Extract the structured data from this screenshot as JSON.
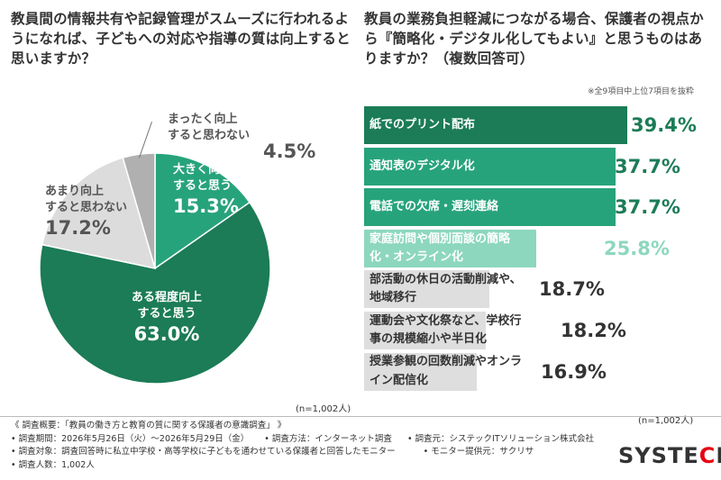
{
  "left_question": "教員間の情報共有や記録管理がスムーズに行われるようになれば、子どもへの対応や指導の質は向上すると思いますか？",
  "right_question": "教員の業務負担軽減につながる場合、保護者の視点から『簡略化・デジタル化してもよい』と思うものはありますか？（複数回答可）",
  "top_note": "※全9項目中上位7項目を抜粋",
  "pie_n": "(n=1,002人)",
  "bar_n": "(n=1,002人)",
  "chart_data": [
    {
      "type": "pie",
      "title": "教員間の情報共有や記録管理がスムーズに行われるようになれば、子どもへの対応や指導の質は向上すると思いますか？",
      "slices": [
        {
          "label_line1": "大きく向上",
          "label_line2": "すると思う",
          "value": 15.3,
          "value_text": "15.3%",
          "color": "#27a37b"
        },
        {
          "label_line1": "ある程度向上",
          "label_line2": "すると思う",
          "value": 63.0,
          "value_text": "63.0%",
          "color": "#1b7c57"
        },
        {
          "label_line1": "あまり向上",
          "label_line2": "すると思わない",
          "value": 17.2,
          "value_text": "17.2%",
          "color": "#dcdcdc"
        },
        {
          "label_line1": "まったく向上",
          "label_line2": "すると思わない",
          "value": 4.5,
          "value_text": "4.5%",
          "color": "#b0b0b0"
        }
      ]
    },
    {
      "type": "bar",
      "orientation": "horizontal",
      "title": "教員の業務負担軽減につながる場合、保護者の視点から『簡略化・デジタル化してもよい』と思うものはありますか？（複数回答可）",
      "xlim": [
        0,
        39.4
      ],
      "bars": [
        {
          "label": "紙でのプリント配布",
          "value": 39.4,
          "value_text": "39.4%",
          "color": "#1b7c57",
          "text_color": "#ffffff",
          "value_color": "#1b7c57"
        },
        {
          "label": "通知表のデジタル化",
          "value": 37.7,
          "value_text": "37.7%",
          "color": "#27a37b",
          "text_color": "#ffffff",
          "value_color": "#1b7c57"
        },
        {
          "label": "電話での欠席・遅刻連絡",
          "value": 37.7,
          "value_text": "37.7%",
          "color": "#27a37b",
          "text_color": "#ffffff",
          "value_color": "#1b7c57"
        },
        {
          "label": "家庭訪問や個別面談の簡略化・オンライン化",
          "value": 25.8,
          "value_text": "25.8%",
          "color": "#8dd7bf",
          "text_color": "#ffffff",
          "value_color": "#8dd7bf"
        },
        {
          "label": "部活動の休日の活動削減や、地域移行",
          "value": 18.7,
          "value_text": "18.7%",
          "color": "#dedede",
          "text_color": "#333333",
          "value_color": "#333333"
        },
        {
          "label": "運動会や文化祭など、学校行事の規模縮小や半日化",
          "value": 18.2,
          "value_text": "18.2%",
          "color": "#dedede",
          "text_color": "#333333",
          "value_color": "#333333"
        },
        {
          "label": "授業参観の回数削減やオンライン配信化",
          "value": 16.9,
          "value_text": "16.9%",
          "color": "#dedede",
          "text_color": "#333333",
          "value_color": "#333333"
        }
      ]
    }
  ],
  "footer": {
    "overview": "《 調査概要：「教員の働き方と教育の質に関する保護者の意識調査」 》",
    "period": "• 調査期間：2026年5月26日（火）～2026年5月29日（金）",
    "method": "• 調査方法：インターネット調査",
    "conductor": "• 調査元：システックITソリューション株式会社",
    "target": "• 調査対象：調査回答時に私立中学校・高等学校に子どもを通わせている保護者と回答したモニター",
    "provider": "• モニター提供元：サクリサ",
    "count": "• 調査人数：1,002人"
  },
  "logo": {
    "main": "SYSTE",
    "accent": "C",
    "tail": "H"
  }
}
